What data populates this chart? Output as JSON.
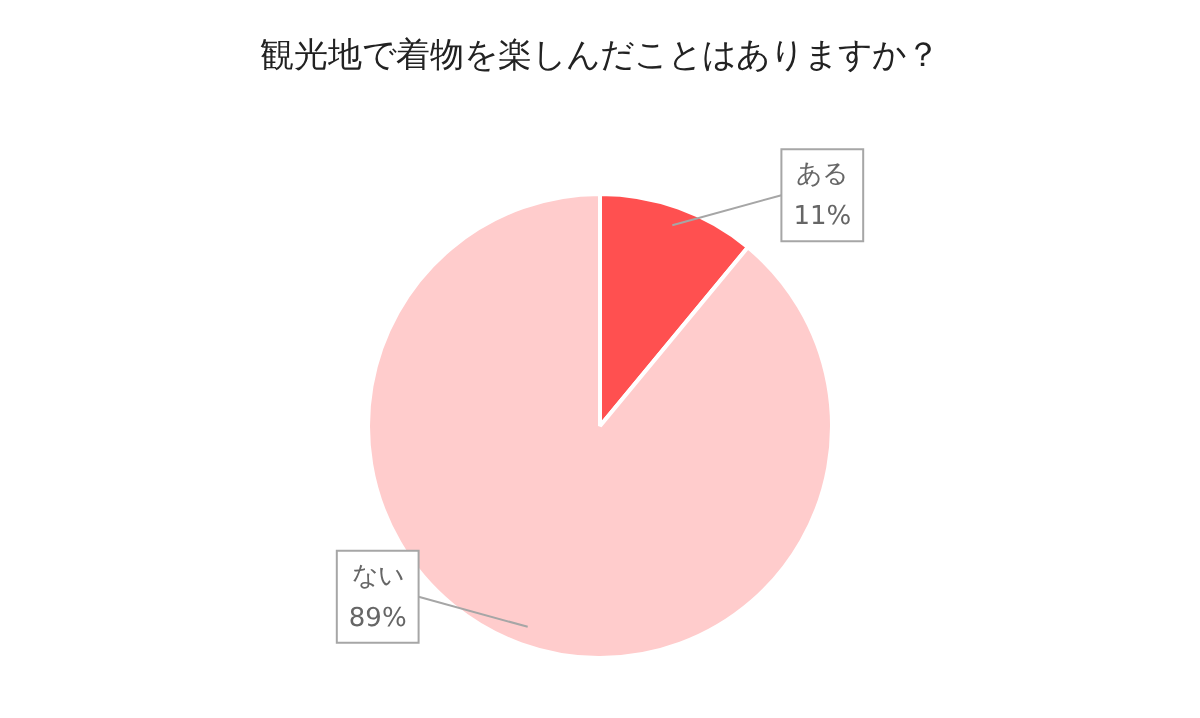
{
  "chart_data": {
    "type": "pie",
    "title": "観光地で着物を楽しんだことはありますか？",
    "categories": [
      "ある",
      "ない"
    ],
    "values": [
      11,
      89
    ],
    "colors": [
      "#ff5050",
      "#ffcccc"
    ],
    "value_labels": [
      "11%",
      "89%"
    ],
    "legend": false
  }
}
